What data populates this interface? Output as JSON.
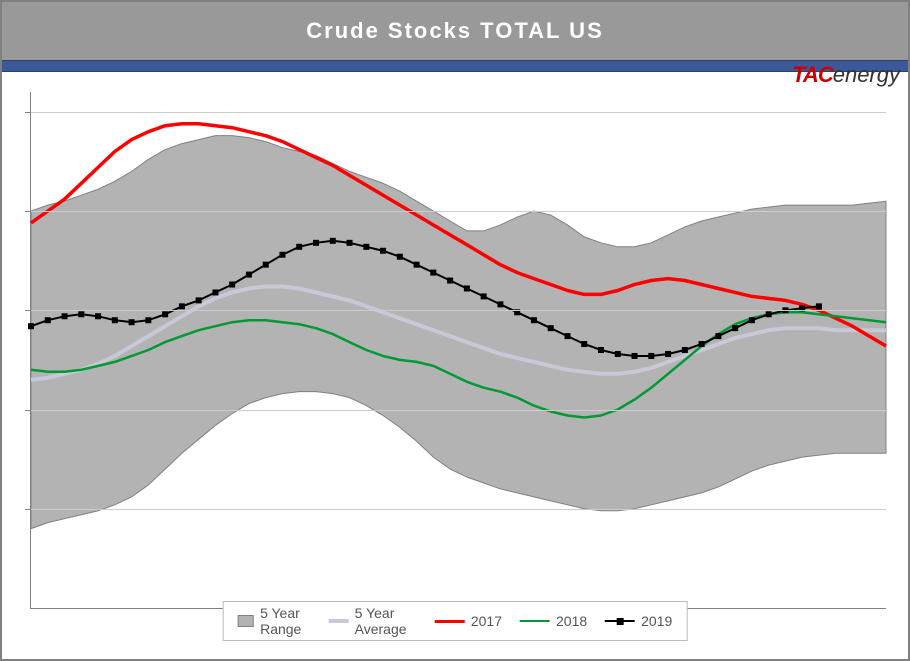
{
  "title": "Crude Stocks TOTAL US",
  "logo": {
    "part1": "TAC",
    "part2": "energy"
  },
  "chart": {
    "type": "line-area",
    "background_color": "#ffffff",
    "title_bar_color": "#999999",
    "accent_bar_color": "#3b5998",
    "plot_border_color": "#808080",
    "grid_color": "#cccccc",
    "weeks": 52,
    "ylim": [
      300,
      560
    ],
    "y_gridlines": [
      350,
      400,
      450,
      500,
      550
    ],
    "series": {
      "range_high": {
        "label": "5 Year Range",
        "color_fill": "#b3b3b3",
        "values": [
          500,
          503,
          505,
          508,
          511,
          515,
          520,
          526,
          531,
          534,
          536,
          538,
          538,
          537,
          535,
          532,
          530,
          528,
          524,
          520,
          517,
          514,
          510,
          505,
          500,
          495,
          490,
          490,
          493,
          497,
          500,
          498,
          493,
          487,
          484,
          482,
          482,
          484,
          488,
          492,
          495,
          497,
          499,
          501,
          502,
          503,
          503,
          503,
          503,
          503,
          504,
          505
        ]
      },
      "range_low": {
        "values": [
          340,
          343,
          345,
          347,
          349,
          352,
          356,
          362,
          370,
          378,
          385,
          392,
          398,
          403,
          406,
          408,
          409,
          409,
          408,
          406,
          402,
          397,
          391,
          384,
          376,
          370,
          366,
          363,
          360,
          358,
          356,
          354,
          352,
          350,
          349,
          349,
          350,
          352,
          354,
          356,
          358,
          361,
          365,
          369,
          372,
          374,
          376,
          377,
          378,
          378,
          378,
          378
        ]
      },
      "avg": {
        "label": "5 Year Average",
        "color": "#c8c8d8",
        "line_width": 4,
        "values": [
          415,
          416,
          418,
          420,
          423,
          427,
          432,
          437,
          442,
          447,
          452,
          456,
          459,
          461,
          462,
          462,
          461,
          459,
          457,
          455,
          452,
          449,
          446,
          443,
          440,
          437,
          434,
          431,
          428,
          426,
          424,
          422,
          420,
          419,
          418,
          418,
          419,
          421,
          424,
          427,
          430,
          433,
          436,
          438,
          440,
          441,
          441,
          441,
          440,
          440,
          440,
          440
        ]
      },
      "y2017": {
        "label": "2017",
        "color": "#ff0000",
        "line_width": 3.5,
        "values": [
          494,
          500,
          506,
          514,
          522,
          530,
          536,
          540,
          543,
          544,
          544,
          543,
          542,
          540,
          538,
          535,
          531,
          527,
          523,
          518,
          513,
          508,
          503,
          498,
          493,
          488,
          483,
          478,
          473,
          469,
          466,
          463,
          460,
          458,
          458,
          460,
          463,
          465,
          466,
          465,
          463,
          461,
          459,
          457,
          456,
          455,
          453,
          450,
          446,
          442,
          437,
          432
        ]
      },
      "y2018": {
        "label": "2018",
        "color": "#009933",
        "line_width": 2.5,
        "values": [
          420,
          419,
          419,
          420,
          422,
          424,
          427,
          430,
          434,
          437,
          440,
          442,
          444,
          445,
          445,
          444,
          443,
          441,
          438,
          434,
          430,
          427,
          425,
          424,
          422,
          418,
          414,
          411,
          409,
          406,
          402,
          399,
          397,
          396,
          397,
          400,
          405,
          411,
          418,
          425,
          432,
          438,
          443,
          446,
          448,
          449,
          449,
          448,
          447,
          446,
          445,
          444
        ]
      },
      "y2019": {
        "label": "2019",
        "color": "#000000",
        "line_width": 2,
        "marker": "square",
        "marker_size": 6,
        "values": [
          442,
          445,
          447,
          448,
          447,
          445,
          444,
          445,
          448,
          452,
          455,
          459,
          463,
          468,
          473,
          478,
          482,
          484,
          485,
          484,
          482,
          480,
          477,
          473,
          469,
          465,
          461,
          457,
          453,
          449,
          445,
          441,
          437,
          433,
          430,
          428,
          427,
          427,
          428,
          430,
          433,
          437,
          441,
          445,
          448,
          450,
          451,
          452
        ]
      }
    },
    "legend": {
      "border_color": "#bbbbbb",
      "text_color": "#555555",
      "font_size": 14,
      "items": [
        "5 Year Range",
        "5 Year Average",
        "2017",
        "2018",
        "2019"
      ]
    }
  }
}
